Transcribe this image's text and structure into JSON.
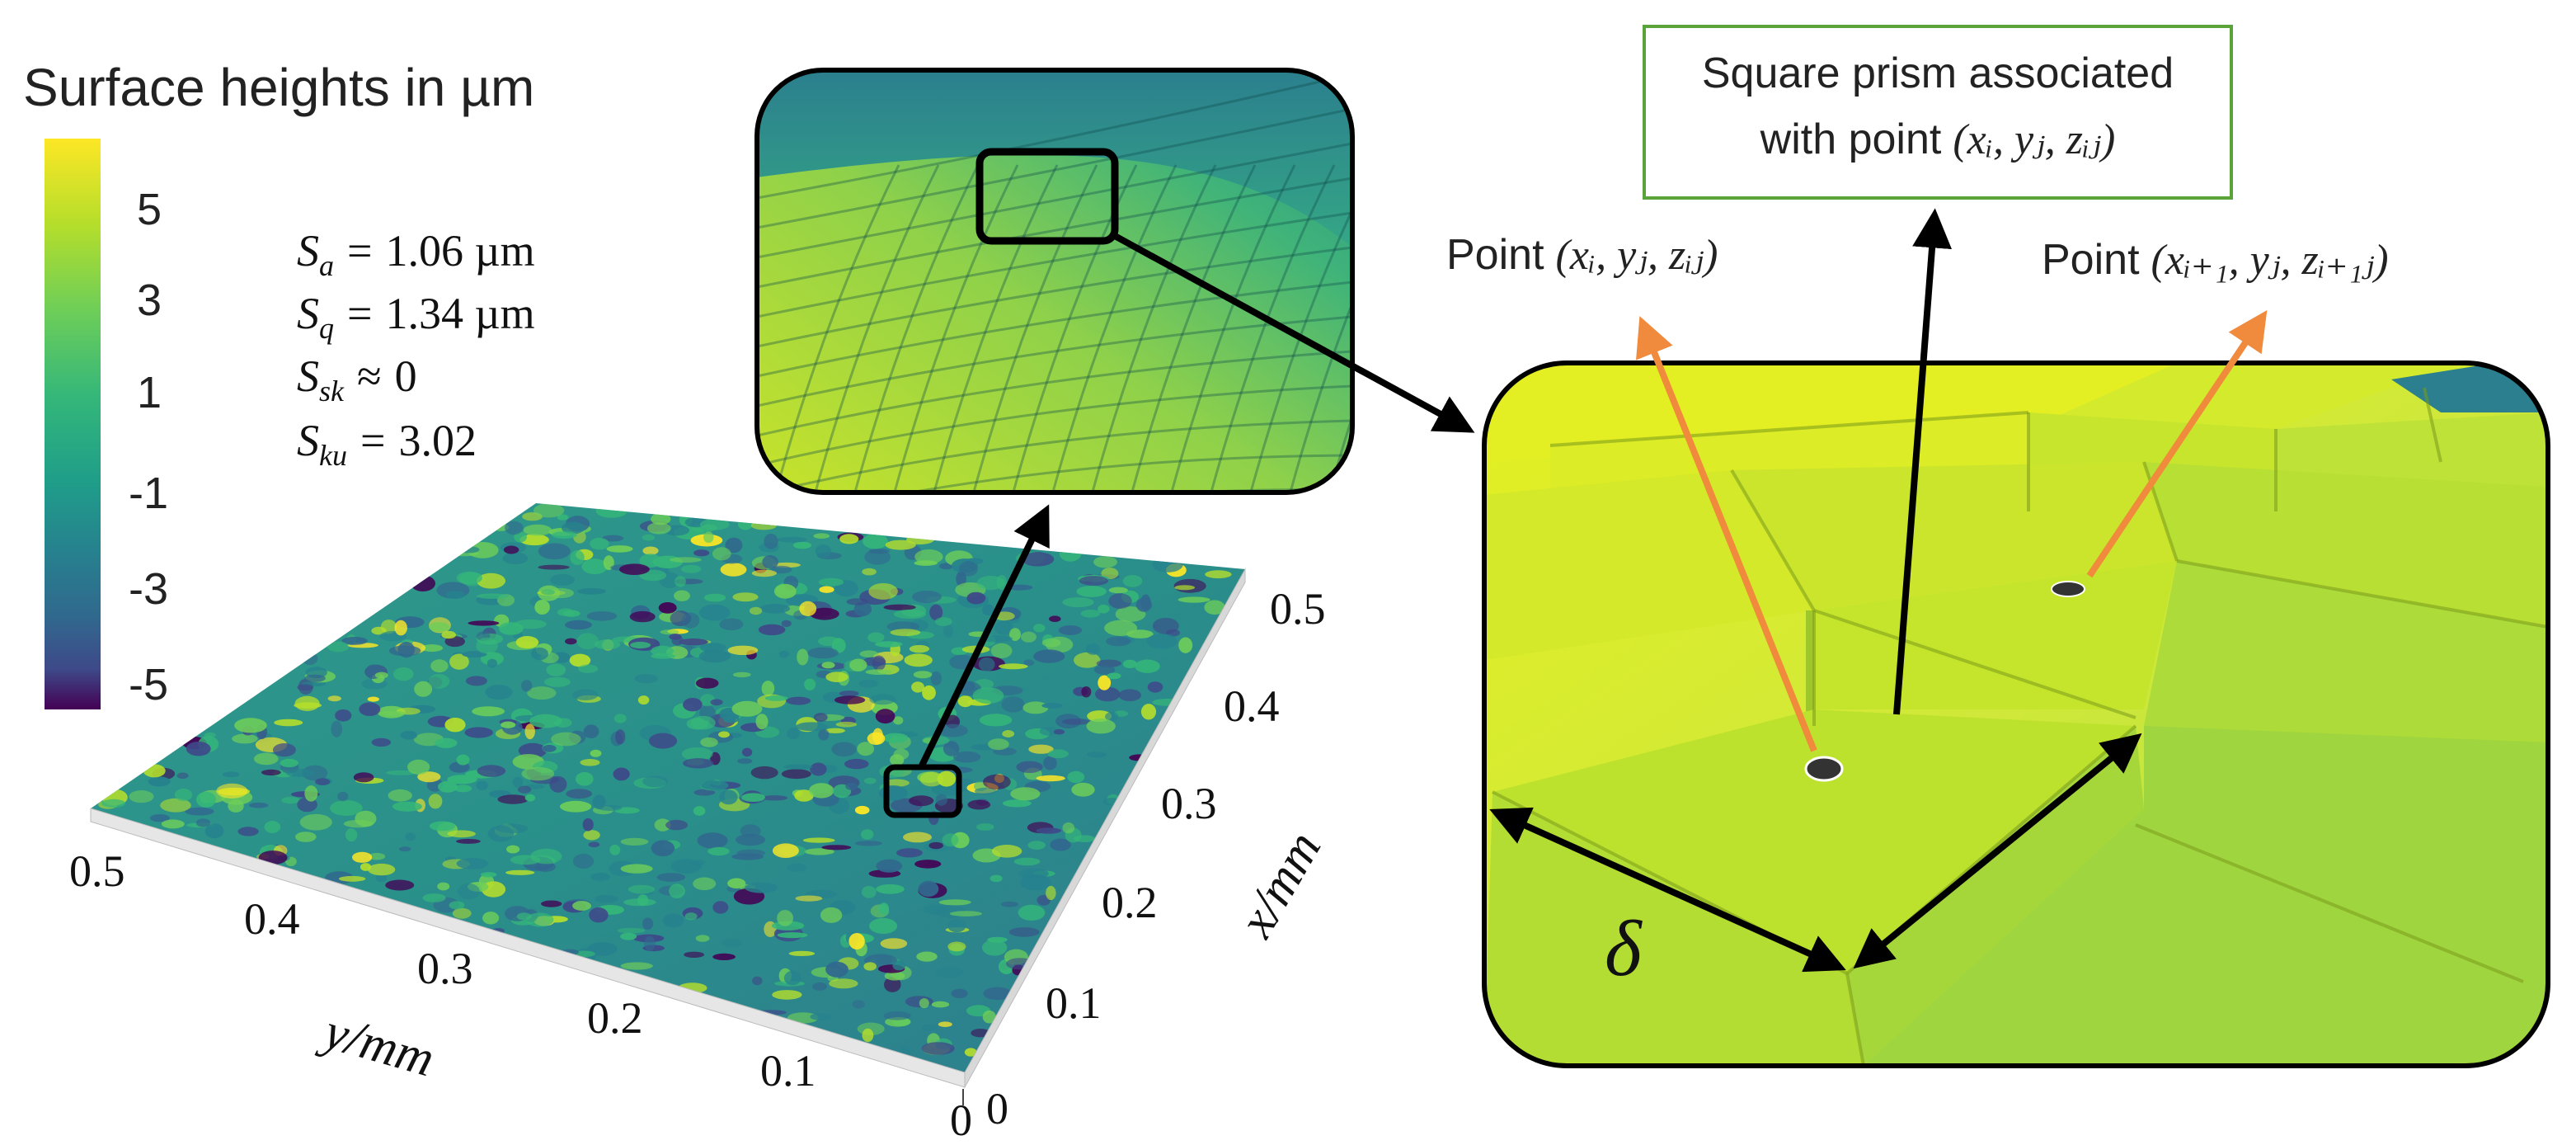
{
  "colorbar": {
    "title": "Surface heights in µm",
    "ticks": [
      "5",
      "3",
      "1",
      "-1",
      "-3",
      "-5"
    ]
  },
  "stats": [
    {
      "symbol": "S",
      "sub": "a",
      "op": "=",
      "value": "1.06 µm"
    },
    {
      "symbol": "S",
      "sub": "q",
      "op": "=",
      "value": "1.34 µm"
    },
    {
      "symbol": "S",
      "sub": "sk",
      "op": "≈",
      "value": "0"
    },
    {
      "symbol": "S",
      "sub": "ku",
      "op": "=",
      "value": "3.02"
    }
  ],
  "surface_axes": {
    "y_label": "y/mm",
    "y_ticks": [
      "0.5",
      "0.4",
      "0.3",
      "0.2",
      "0.1",
      "0"
    ],
    "x_label": "x/mm",
    "x_ticks": [
      "0",
      "0.1",
      "0.2",
      "0.3",
      "0.4",
      "0.5"
    ]
  },
  "callout_box": {
    "line1": "Square prism associated",
    "line2_prefix": "with point",
    "coords": "(xᵢ, yⱼ, zᵢⱼ)"
  },
  "point_labels": {
    "p1_prefix": "Point",
    "p1_coords": "(xᵢ, yⱼ, zᵢⱼ)",
    "p2_prefix": "Point",
    "p2_coords": "(xᵢ₊₁, yⱼ, zᵢ₊₁ⱼ)"
  },
  "delta_label": "δ",
  "colors": {
    "orange_arrow": "#f08a3c",
    "green_border": "#5aa33a",
    "viridis_top": "#fde725",
    "viridis_mid": "#21918c",
    "viridis_bottom": "#440154"
  }
}
